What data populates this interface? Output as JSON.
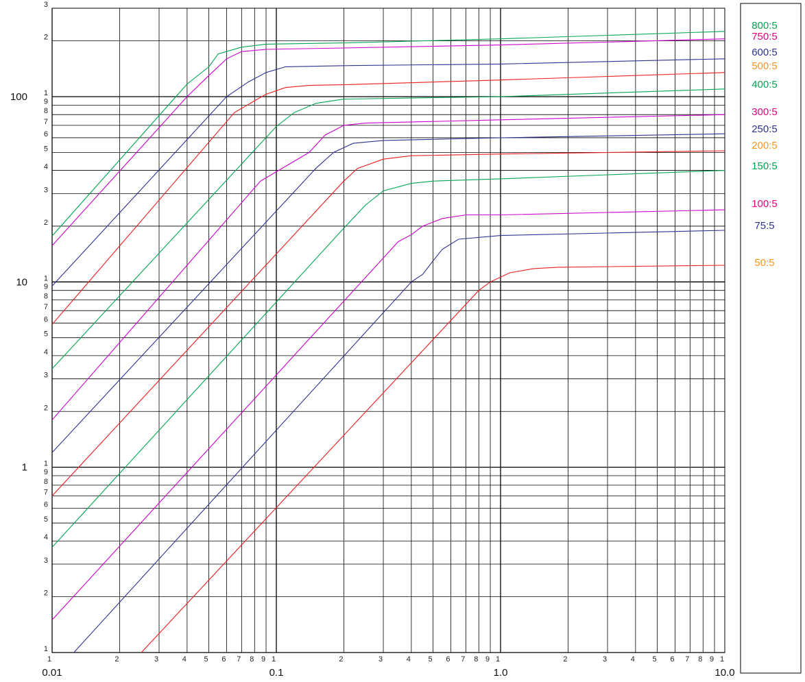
{
  "chart_data": {
    "type": "line",
    "title": "",
    "xlabel": "",
    "ylabel": "",
    "x_scale": "log",
    "y_scale": "log",
    "xlim": [
      0.01,
      10
    ],
    "ylim": [
      0.1,
      300
    ],
    "grid": true,
    "legend_position": "right",
    "x_major_labels": [
      "0.01",
      "0.1",
      "1.0",
      "10.0"
    ],
    "y_major_labels": [
      "100",
      "10",
      "1"
    ],
    "minor_tick_labels": [
      "1",
      "2",
      "3",
      "4",
      "5",
      "6",
      "7",
      "8",
      "9"
    ],
    "legend": [
      {
        "label": "800:5",
        "color": "#00a651"
      },
      {
        "label": "750:5",
        "color": "#e6007e"
      },
      {
        "label": "600:5",
        "color": "#2e3192"
      },
      {
        "label": "500:5",
        "color": "#f7941d"
      },
      {
        "label": "400:5",
        "color": "#00a651"
      },
      {
        "label": "300:5",
        "color": "#e6007e"
      },
      {
        "label": "250:5",
        "color": "#2e3192"
      },
      {
        "label": "200:5",
        "color": "#f7941d"
      },
      {
        "label": "150:5",
        "color": "#00a651"
      },
      {
        "label": "100:5",
        "color": "#e6007e"
      },
      {
        "label": "75:5",
        "color": "#2e3192"
      },
      {
        "label": "50:5",
        "color": "#f7941d"
      }
    ],
    "series": [
      {
        "color": "#00a651",
        "x": [
          0.01,
          0.04,
          0.05,
          0.055,
          0.07,
          0.09,
          0.2,
          1,
          10
        ],
        "y": [
          17.7,
          117,
          145,
          170,
          185,
          192,
          195,
          205,
          225
        ]
      },
      {
        "color": "#cc00cc",
        "x": [
          0.01,
          0.04,
          0.05,
          0.06,
          0.07,
          0.09,
          0.2,
          1,
          10
        ],
        "y": [
          15.7,
          100,
          130,
          160,
          175,
          180,
          183,
          190,
          205
        ]
      },
      {
        "color": "#2e3192",
        "x": [
          0.01,
          0.06,
          0.075,
          0.09,
          0.11,
          0.2,
          1,
          10
        ],
        "y": [
          9.5,
          100,
          120,
          135,
          145,
          147,
          150,
          160
        ]
      },
      {
        "color": "#ee1c1c",
        "x": [
          0.01,
          0.065,
          0.08,
          0.09,
          0.11,
          0.14,
          0.2,
          1,
          10
        ],
        "y": [
          5.9,
          82,
          95,
          103,
          112,
          115,
          116,
          123,
          135
        ]
      },
      {
        "color": "#00a651",
        "x": [
          0.01,
          0.1,
          0.12,
          0.15,
          0.2,
          1,
          10
        ],
        "y": [
          3.4,
          69,
          82,
          92,
          97,
          100,
          110
        ]
      },
      {
        "color": "#cc00cc",
        "x": [
          0.01,
          0.085,
          0.14,
          0.165,
          0.2,
          0.25,
          1,
          10
        ],
        "y": [
          1.8,
          35,
          50,
          62,
          70,
          72,
          75,
          80
        ]
      },
      {
        "color": "#2e3192",
        "x": [
          0.01,
          0.15,
          0.18,
          0.22,
          0.3,
          1,
          10
        ],
        "y": [
          1.2,
          41,
          50,
          56,
          58,
          60,
          63
        ]
      },
      {
        "color": "#ee1c1c",
        "x": [
          0.01,
          0.2,
          0.23,
          0.3,
          0.4,
          1,
          10
        ],
        "y": [
          0.7,
          35,
          41,
          46,
          48,
          49,
          51
        ]
      },
      {
        "color": "#00a651",
        "x": [
          0.01,
          0.2,
          0.25,
          0.3,
          0.4,
          0.5,
          1,
          10
        ],
        "y": [
          0.37,
          19.5,
          26,
          31,
          34,
          35,
          36,
          40
        ]
      },
      {
        "color": "#cc00cc",
        "x": [
          0.01,
          0.35,
          0.4,
          0.45,
          0.55,
          0.7,
          1,
          10
        ],
        "y": [
          0.15,
          16.5,
          18,
          20,
          22,
          23,
          23,
          24.5
        ]
      },
      {
        "color": "#2e3192",
        "x": [
          0.0125,
          0.4,
          0.45,
          0.5,
          0.55,
          0.65,
          1,
          10
        ],
        "y": [
          0.1,
          10,
          11,
          13,
          15,
          17,
          17.8,
          19
        ]
      },
      {
        "color": "#ee1c1c",
        "x": [
          0.025,
          0.8,
          0.9,
          1.1,
          1.4,
          1.8,
          10
        ],
        "y": [
          0.1,
          9,
          10,
          11.2,
          11.8,
          12,
          12.3
        ]
      }
    ]
  }
}
